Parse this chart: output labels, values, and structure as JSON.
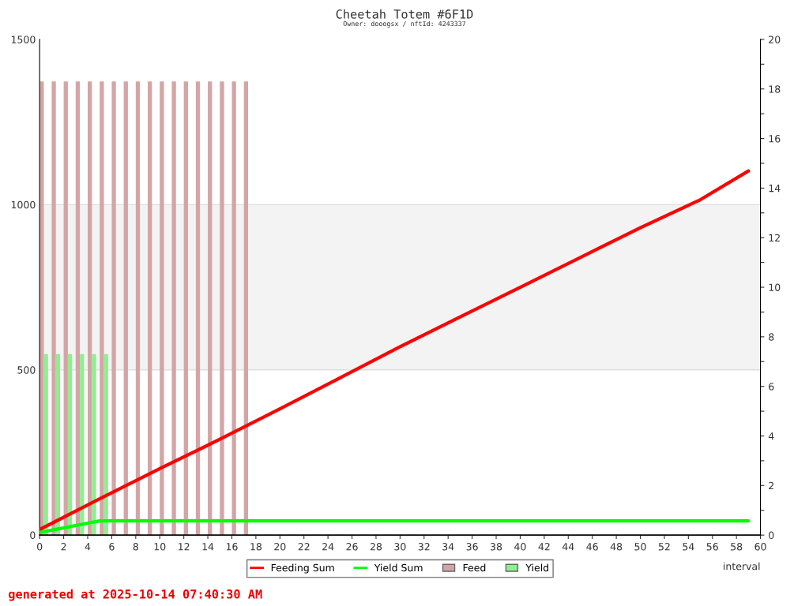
{
  "chart_data": {
    "type": "bar",
    "title": "Cheetah Totem #6F1D",
    "subtitle": "Owner: dooogsx / nftId: 4243337",
    "xlabel": "interval",
    "xlim": [
      0,
      60
    ],
    "xticks": [
      0,
      2,
      4,
      6,
      8,
      10,
      12,
      14,
      16,
      18,
      20,
      22,
      24,
      26,
      28,
      30,
      32,
      34,
      36,
      38,
      40,
      42,
      44,
      46,
      48,
      50,
      52,
      54,
      56,
      58,
      60
    ],
    "ylim": [
      0,
      1500
    ],
    "yticks": [
      0,
      500,
      1000,
      1500
    ],
    "y2lim": [
      0,
      20
    ],
    "y2ticks": [
      0,
      {
        "value": 1,
        "label": null
      },
      2,
      {
        "value": 3,
        "label": null
      },
      4,
      {
        "value": 5,
        "label": null
      },
      6,
      {
        "value": 7,
        "label": null
      },
      8,
      {
        "value": 9,
        "label": null
      },
      10,
      {
        "value": 11,
        "label": null
      },
      12,
      {
        "value": 13,
        "label": null
      },
      14,
      {
        "value": 15,
        "label": null
      },
      16,
      {
        "value": 17,
        "label": null
      },
      18,
      {
        "value": 19,
        "label": null
      },
      20
    ],
    "series": [
      {
        "name": "Feeding Sum",
        "type": "line",
        "color": "#ff0000",
        "x": [
          0,
          5,
          10,
          15,
          20,
          25,
          30,
          35,
          40,
          45,
          50,
          55,
          59
        ],
        "values": [
          17,
          110,
          201,
          290,
          382,
          476,
          570,
          660,
          750,
          840,
          930,
          1015,
          1102
        ]
      },
      {
        "name": "Yield Sum",
        "type": "line",
        "color": "#00ff00",
        "x": [
          0,
          1,
          2,
          3,
          4,
          5,
          59
        ],
        "values": [
          8,
          15,
          22,
          29,
          36,
          43,
          43
        ]
      },
      {
        "name": "Feed",
        "axis": "y2",
        "color": "#d4a5a5",
        "x": [
          0,
          1,
          2,
          3,
          4,
          5,
          6,
          7,
          8,
          9,
          10,
          11,
          12,
          13,
          14,
          15,
          16,
          17
        ],
        "values": [
          18.3,
          18.3,
          18.3,
          18.3,
          18.3,
          18.3,
          18.3,
          18.3,
          18.3,
          18.3,
          18.3,
          18.3,
          18.3,
          18.3,
          18.3,
          18.3,
          18.3,
          18.3
        ]
      },
      {
        "name": "Yield",
        "axis": "y2",
        "color": "#90ee90",
        "x": [
          0,
          1,
          2,
          3,
          4,
          5
        ],
        "values": [
          7.3,
          7.3,
          7.3,
          7.3,
          7.3,
          7.3
        ]
      }
    ],
    "bands": [
      {
        "axis": "y",
        "from": 500,
        "to": 1000,
        "color": "#f3f3f3"
      }
    ],
    "legend": "bottom",
    "annotations": [
      "generated at 2025-10-14 07:40:30 AM"
    ]
  }
}
